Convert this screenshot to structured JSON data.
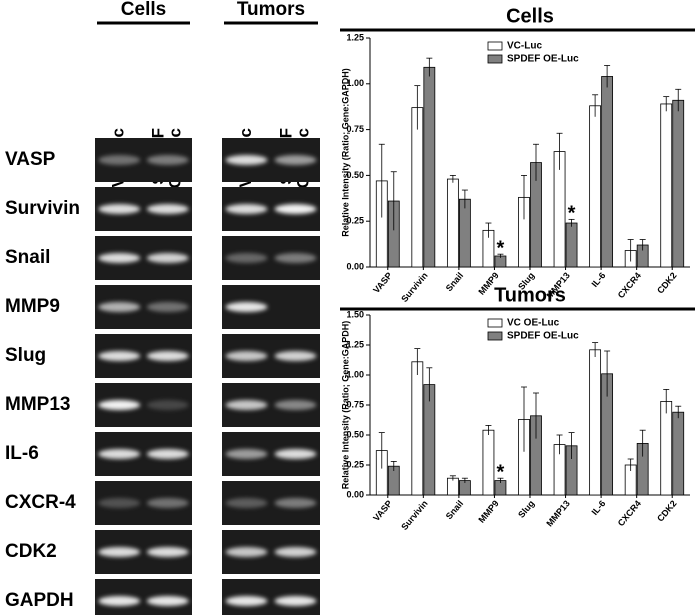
{
  "blot": {
    "groups": [
      {
        "title": "Cells",
        "lanes": [
          [
            "VC-Luc"
          ],
          [
            "SPDEF",
            "OE-Luc"
          ]
        ]
      },
      {
        "title": "Tumors",
        "lanes": [
          [
            "VC-Luc"
          ],
          [
            "SPDEF",
            "OE-Luc"
          ]
        ]
      }
    ],
    "rows": [
      "VASP",
      "Survivin",
      "Snail",
      "MMP9",
      "Slug",
      "MMP13",
      "IL-6",
      "CXCR-4",
      "CDK2",
      "GAPDH"
    ]
  },
  "chart_data": [
    {
      "type": "bar",
      "title": "Cells",
      "ylabel": "Relative Intensity (Ratio; Gene:GAPDH)",
      "categories": [
        "VASP",
        "Survivin",
        "Snail",
        "MMP9",
        "Slug",
        "MMP13",
        "IL-6",
        "CXCR4",
        "CDK2"
      ],
      "series": [
        {
          "name": "VC-Luc",
          "color": "#ffffff",
          "values": [
            0.47,
            0.87,
            0.48,
            0.2,
            0.38,
            0.63,
            0.88,
            0.09,
            0.89
          ],
          "errors": [
            0.2,
            0.12,
            0.02,
            0.04,
            0.12,
            0.1,
            0.06,
            0.06,
            0.04
          ]
        },
        {
          "name": "SPDEF OE-Luc",
          "color": "#808080",
          "values": [
            0.36,
            1.09,
            0.37,
            0.06,
            0.57,
            0.24,
            1.04,
            0.12,
            0.91
          ],
          "errors": [
            0.16,
            0.05,
            0.05,
            0.01,
            0.1,
            0.02,
            0.06,
            0.03,
            0.06
          ]
        }
      ],
      "annotations": [
        {
          "text": "*",
          "category": "MMP9",
          "series": "SPDEF OE-Luc"
        },
        {
          "text": "*",
          "category": "MMP13",
          "series": "SPDEF OE-Luc"
        }
      ],
      "ylim": [
        0,
        1.25
      ],
      "yticks": [
        {
          "value": 0,
          "label": "0.00"
        },
        {
          "value": 0.25,
          "label": "0.25"
        },
        {
          "value": 0.5,
          "label": "0.50"
        },
        {
          "value": 0.75,
          "label": "0.75"
        },
        {
          "value": 1,
          "label": "1.00"
        },
        {
          "value": 1.25,
          "label": "1.25"
        }
      ],
      "legend": "top"
    },
    {
      "type": "bar",
      "title": "Tumors",
      "ylabel": "Relative Intensity (Ratio; Gene:GAPDH)",
      "categories": [
        "VASP",
        "Survivin",
        "Snail",
        "MMP9",
        "Slug",
        "MMP13",
        "IL-6",
        "CXCR4",
        "CDK2"
      ],
      "series": [
        {
          "name": "VC OE-Luc",
          "color": "#ffffff",
          "values": [
            0.37,
            1.11,
            0.14,
            0.54,
            0.63,
            0.42,
            1.21,
            0.25,
            0.78
          ],
          "errors": [
            0.15,
            0.11,
            0.02,
            0.04,
            0.27,
            0.08,
            0.06,
            0.05,
            0.1
          ]
        },
        {
          "name": "SPDEF OE-Luc",
          "color": "#808080",
          "values": [
            0.24,
            0.92,
            0.12,
            0.12,
            0.66,
            0.41,
            1.01,
            0.43,
            0.69
          ],
          "errors": [
            0.04,
            0.14,
            0.02,
            0.02,
            0.19,
            0.11,
            0.19,
            0.11,
            0.05
          ]
        }
      ],
      "annotations": [
        {
          "text": "*",
          "category": "MMP9",
          "series": "SPDEF OE-Luc"
        }
      ],
      "ylim": [
        0,
        1.5
      ],
      "yticks": [
        {
          "value": 0,
          "label": "0.00"
        },
        {
          "value": 0.25,
          "label": "0.25"
        },
        {
          "value": 0.5,
          "label": "0.50"
        },
        {
          "value": 0.75,
          "label": "0.75"
        },
        {
          "value": 1,
          "label": "1.00"
        },
        {
          "value": 1.25,
          "label": "1.25"
        },
        {
          "value": 1.5,
          "label": "1.50"
        }
      ],
      "legend": "top"
    }
  ]
}
